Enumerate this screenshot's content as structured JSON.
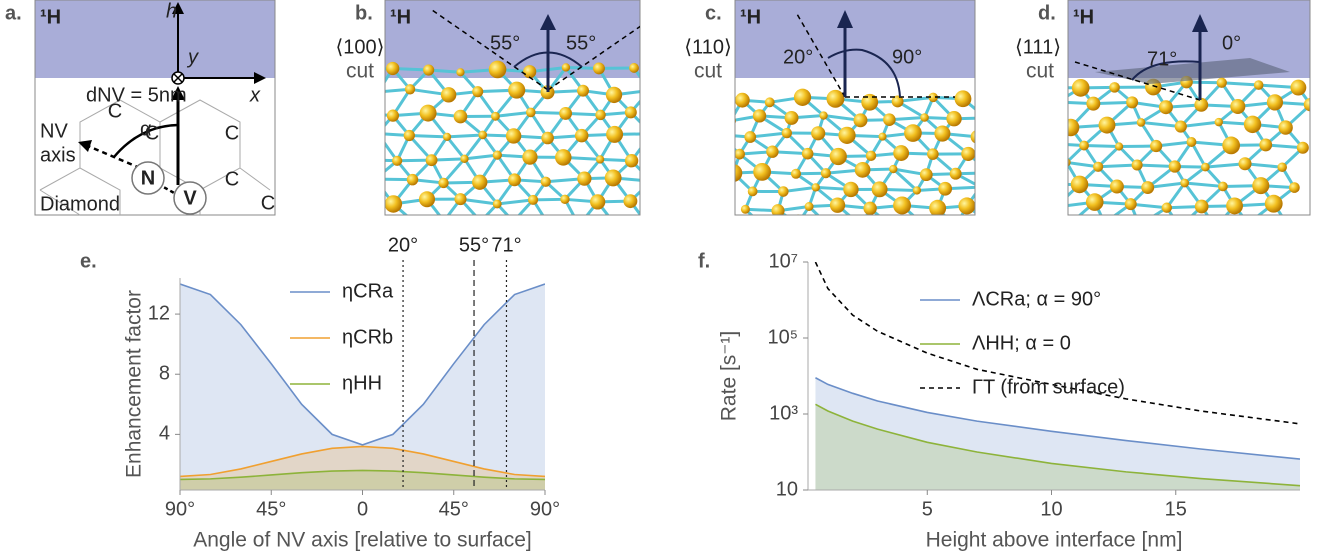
{
  "diagrams": {
    "a": {
      "label": "a.",
      "medium": "¹H",
      "h": "h",
      "y": "y",
      "x": "x",
      "depth": "dNV = 5nm",
      "nv_axis_1": "NV",
      "nv_axis_2": "axis",
      "alpha": "α",
      "n": "N",
      "v": "V",
      "c_atoms": [
        "C",
        "C",
        "C",
        "C",
        "C"
      ],
      "diamond": "Diamond"
    },
    "b": {
      "label": "b.",
      "medium": "¹H",
      "cut_face": "⟨100⟩",
      "cut": "cut",
      "angle_left": "55°",
      "angle_right": "55°"
    },
    "c": {
      "label": "c.",
      "medium": "¹H",
      "cut_face": "⟨110⟩",
      "cut": "cut",
      "angle_left": "20°",
      "angle_right": "90°"
    },
    "d": {
      "label": "d.",
      "medium": "¹H",
      "cut_face": "⟨111⟩",
      "cut": "cut",
      "angle_left": "71°",
      "angle_right": "0°"
    }
  },
  "chart_data": [
    {
      "type": "area",
      "panel_label": "e.",
      "xlabel": "Angle of NV axis [relative to surface]",
      "ylabel": "Enhancement factor",
      "x": [
        -90,
        -75,
        -60,
        -45,
        -30,
        -15,
        0,
        15,
        30,
        45,
        60,
        75,
        90
      ],
      "series": [
        {
          "name": "ηCRa",
          "color": "#6a8ec8",
          "fill": true,
          "values": [
            14.0,
            13.3,
            11.3,
            8.7,
            6.0,
            4.0,
            3.3,
            4.0,
            6.0,
            8.7,
            11.3,
            13.3,
            14.0
          ]
        },
        {
          "name": "ηCRb",
          "color": "#f0a030",
          "fill": true,
          "values": [
            1.2,
            1.33,
            1.7,
            2.2,
            2.7,
            3.07,
            3.2,
            3.07,
            2.7,
            2.2,
            1.7,
            1.33,
            1.2
          ]
        },
        {
          "name": "ηHH",
          "color": "#8db33a",
          "fill": true,
          "values": [
            1.0,
            1.04,
            1.15,
            1.3,
            1.45,
            1.56,
            1.6,
            1.56,
            1.45,
            1.3,
            1.15,
            1.04,
            1.0
          ]
        }
      ],
      "xlim": [
        -90,
        90
      ],
      "ylim": [
        0.3,
        14.4
      ],
      "xticks": [
        {
          "value": -90,
          "label": "90°"
        },
        {
          "value": -45,
          "label": "45°"
        },
        0,
        {
          "value": 45,
          "label": "45°"
        },
        {
          "value": 90,
          "label": "90°"
        }
      ],
      "yticks": [
        4,
        8,
        12
      ],
      "vlines": [
        {
          "value": 20,
          "label": "20°",
          "style": "dotted"
        },
        {
          "value": 55,
          "label": "55°",
          "style": "dashed"
        },
        {
          "value": 71,
          "label": "71°",
          "style": "dotted"
        }
      ],
      "log_y": false
    },
    {
      "type": "area",
      "panel_label": "f.",
      "xlabel": "Height above interface [nm]",
      "ylabel": "Rate [s⁻¹]",
      "x": [
        0.5,
        1,
        2,
        3,
        5,
        7,
        10,
        13,
        16,
        20
      ],
      "series": [
        {
          "name": "ΛCRa; α = 90°",
          "color": "#6a8ec8",
          "fill": true,
          "values": [
            9000,
            6000,
            3500,
            2200,
            1100,
            650,
            350,
            200,
            120,
            65
          ]
        },
        {
          "name": "ΛHH; α = 0",
          "color": "#8db33a",
          "fill": true,
          "values": [
            1800,
            1200,
            650,
            400,
            180,
            100,
            50,
            30,
            20,
            13
          ]
        },
        {
          "name": "ΓT (from surface)",
          "color": "#000000",
          "fill": false,
          "dashed": true,
          "values": [
            10000000,
            2000000,
            400000,
            150000,
            40000,
            15000,
            6000,
            2500,
            1200,
            550
          ]
        }
      ],
      "xlim": [
        0.2,
        20
      ],
      "ylim": [
        10,
        10000000
      ],
      "xticks": [
        5,
        10,
        15
      ],
      "yticks": [
        10,
        {
          "value": 1000,
          "label": "10³"
        },
        {
          "value": 100000,
          "label": "10⁵"
        },
        {
          "value": 10000000,
          "label": "10⁷"
        }
      ],
      "log_y": true
    }
  ]
}
